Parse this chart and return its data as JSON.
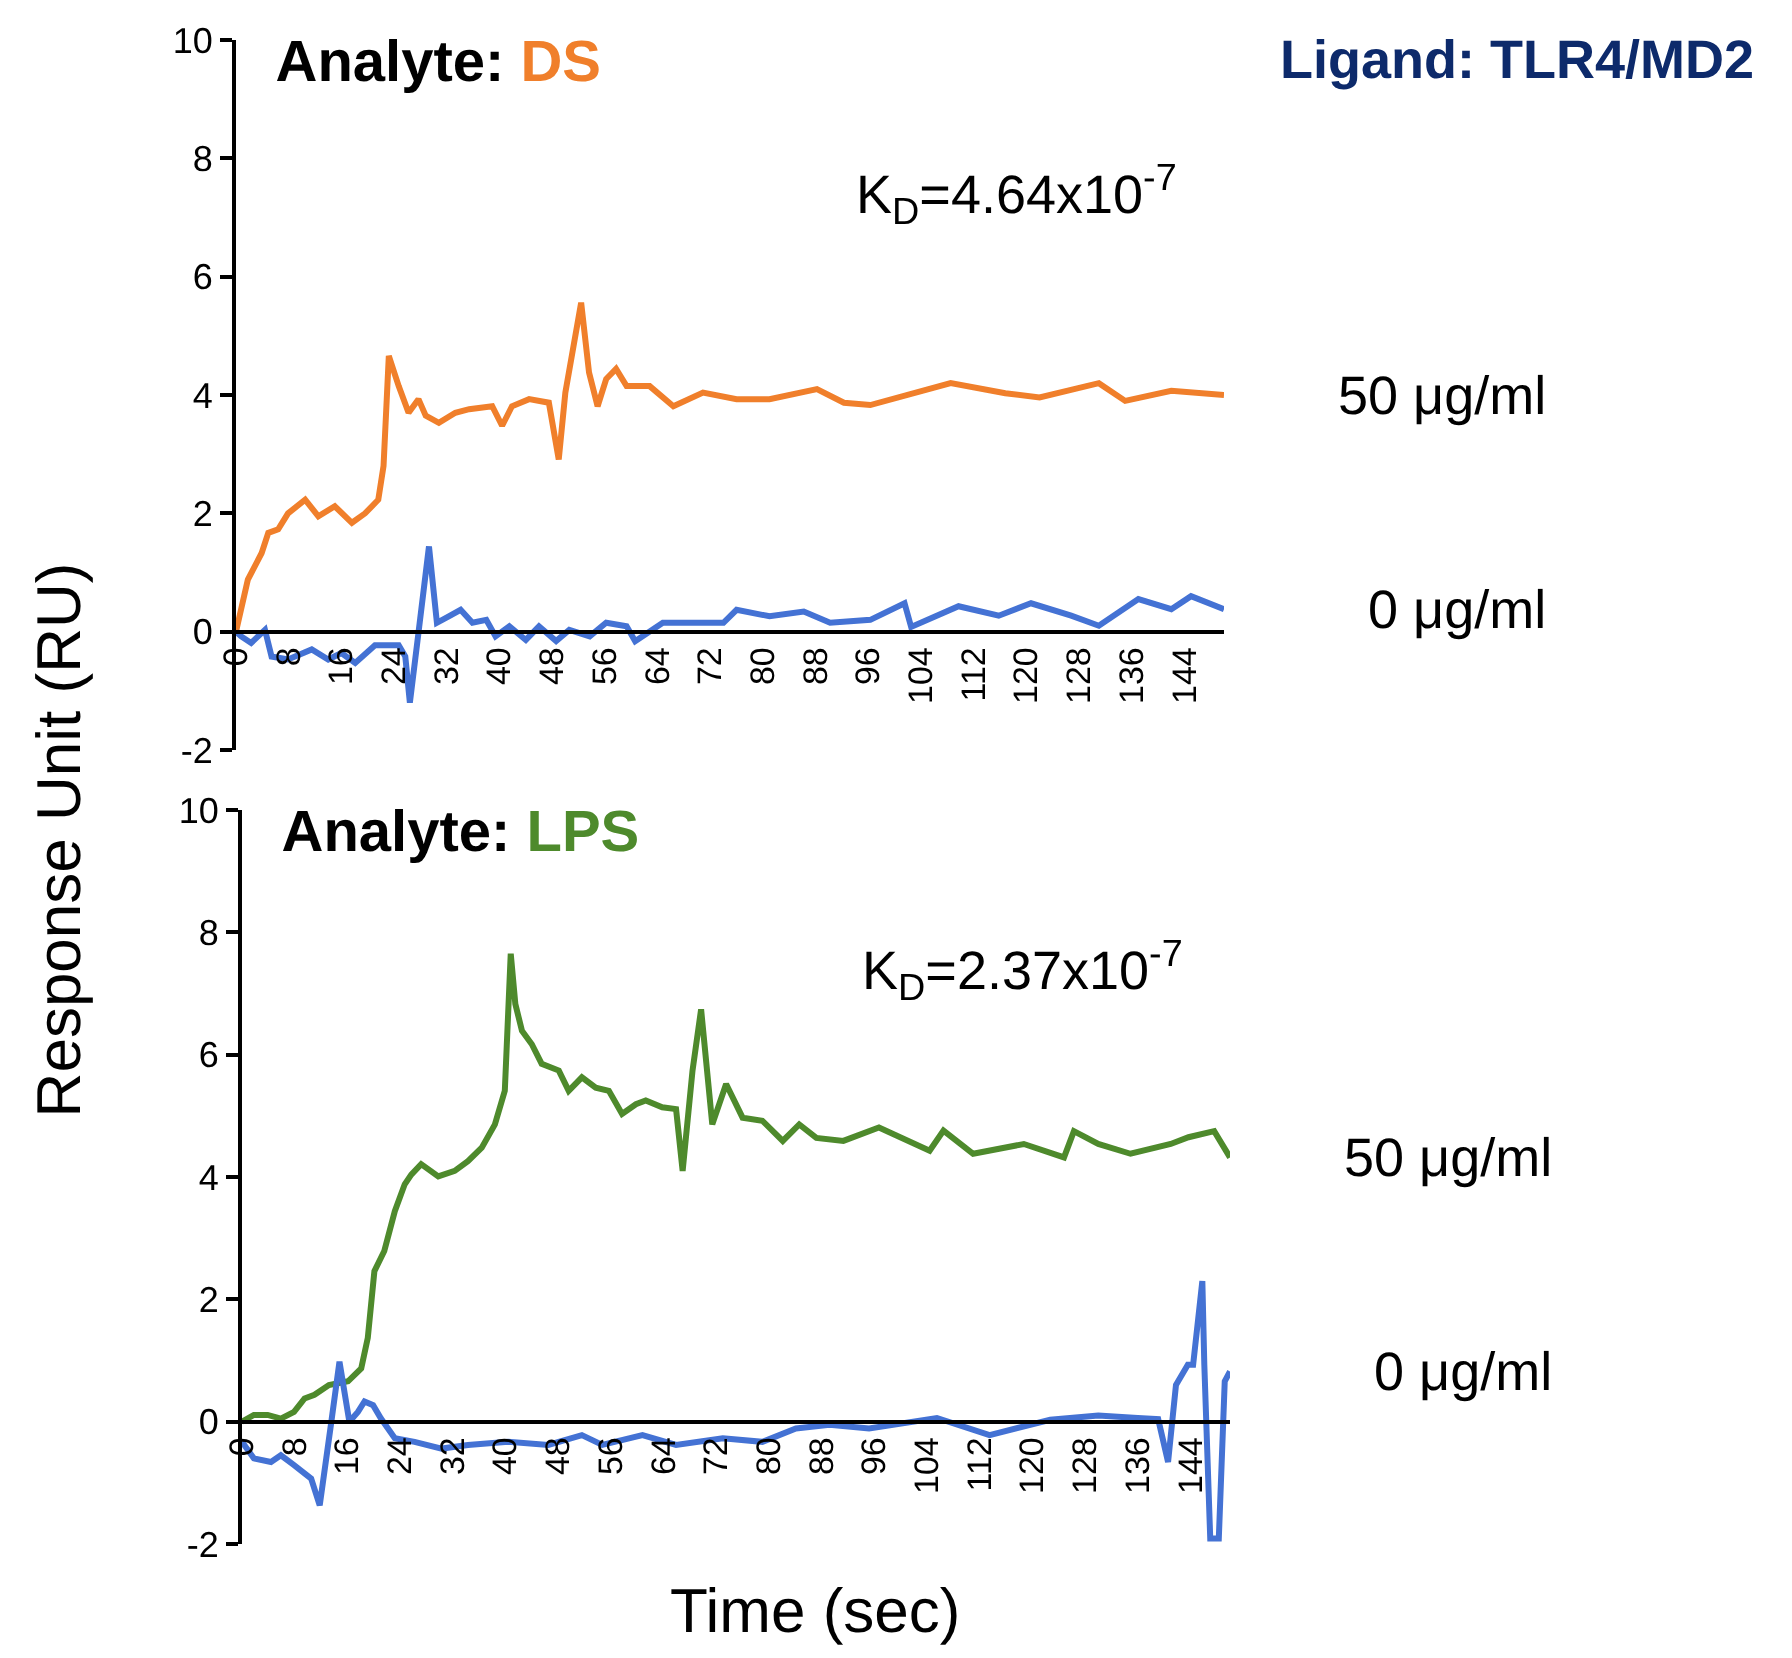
{
  "chart_data": [
    {
      "type": "line",
      "title": "Analyte: DS",
      "subtitle": "K$_{D}$=4.64x10$^{-7}$",
      "ylabel": "Response Unit (RU)",
      "annotations": [
        "Ligand: TLR4/MD2"
      ],
      "xlim": [
        0,
        150
      ],
      "ylim": [
        -2,
        10
      ],
      "xticks": [
        0,
        8,
        16,
        24,
        32,
        40,
        48,
        56,
        64,
        72,
        80,
        88,
        96,
        104,
        112,
        120,
        128,
        136,
        144
      ],
      "yticks": [
        -2,
        0,
        2,
        4,
        6,
        8,
        10
      ],
      "grid": false,
      "legend": false,
      "marker": "none",
      "line_style": "solid",
      "series": [
        {
          "name": "50 μg/ml",
          "color": "#f07f2b",
          "x": [
            0,
            1.8,
            3.9,
            4.9,
            6.4,
            7.9,
            10.5,
            12.5,
            15,
            17.6,
            19.6,
            21.6,
            22.4,
            23.2,
            24.7,
            26.2,
            27.7,
            28.8,
            30.8,
            33.3,
            35.4,
            38.9,
            40.4,
            41.9,
            44.5,
            47.5,
            49,
            50,
            52.4,
            53.6,
            54.9,
            56.2,
            57.7,
            59.3,
            62.8,
            66.4,
            70.9,
            76,
            81,
            88.2,
            92.3,
            96.3,
            108.5,
            116.8,
            122,
            131,
            135,
            142,
            150
          ],
          "values": [
            0,
            0.88,
            1.33,
            1.67,
            1.73,
            2.0,
            2.23,
            1.95,
            2.12,
            1.84,
            2.0,
            2.23,
            2.8,
            4.66,
            4.15,
            3.7,
            3.93,
            3.65,
            3.53,
            3.7,
            3.76,
            3.81,
            3.48,
            3.81,
            3.93,
            3.87,
            2.91,
            4.04,
            5.56,
            4.38,
            3.81,
            4.27,
            4.44,
            4.15,
            4.15,
            3.81,
            4.04,
            3.93,
            3.93,
            4.1,
            3.87,
            3.83,
            4.2,
            4.03,
            3.96,
            4.2,
            3.9,
            4.07,
            4.0
          ]
        },
        {
          "name": "0 μg/ml",
          "color": "#4472d4",
          "x": [
            0,
            0.8,
            2.3,
            4.4,
            5.4,
            7.9,
            11.5,
            14,
            16,
            18.1,
            21.1,
            24.7,
            25.7,
            26.4,
            27.7,
            29.3,
            30.5,
            32.3,
            34.1,
            35.9,
            38,
            39.4,
            41.5,
            44,
            46,
            48.6,
            50.6,
            53.7,
            56.2,
            59.3,
            60.6,
            64.8,
            74,
            76,
            81,
            86.2,
            90.2,
            96.3,
            101.5,
            102.5,
            109.7,
            115.8,
            120.7,
            126.8,
            131,
            137,
            142,
            145,
            150
          ],
          "values": [
            0,
            -0.08,
            -0.19,
            0.03,
            -0.42,
            -0.47,
            -0.3,
            -0.47,
            -0.36,
            -0.53,
            -0.23,
            -0.23,
            -0.42,
            -1.2,
            -0.02,
            1.44,
            0.15,
            0.26,
            0.37,
            0.15,
            0.2,
            -0.08,
            0.09,
            -0.14,
            0.09,
            -0.16,
            0.03,
            -0.08,
            0.15,
            0.09,
            -0.16,
            0.15,
            0.15,
            0.37,
            0.26,
            0.34,
            0.15,
            0.2,
            0.48,
            0.08,
            0.43,
            0.27,
            0.48,
            0.27,
            0.1,
            0.55,
            0.38,
            0.6,
            0.38
          ]
        }
      ]
    },
    {
      "type": "line",
      "title": "Analyte: LPS",
      "subtitle": "K$_{D}$=2.37x10$^{-7}$",
      "xlabel": "Time (sec)",
      "xlim": [
        0,
        150
      ],
      "ylim": [
        -2,
        10
      ],
      "xticks": [
        0,
        8,
        16,
        24,
        32,
        40,
        48,
        56,
        64,
        72,
        80,
        88,
        96,
        104,
        112,
        120,
        128,
        136,
        144
      ],
      "yticks": [
        -2,
        0,
        2,
        4,
        6,
        8,
        10
      ],
      "grid": false,
      "legend": false,
      "marker": "none",
      "line_style": "solid",
      "series": [
        {
          "name": "50 μg/ml",
          "color": "#4e8a2c",
          "x": [
            0,
            1.8,
            3.9,
            5.9,
            7.9,
            9.5,
            11,
            13.2,
            16.1,
            18.1,
            19.1,
            20.1,
            21.6,
            23.2,
            24.7,
            25.7,
            27.2,
            29.8,
            32.3,
            34.3,
            36.4,
            38.4,
            39.9,
            40.8,
            41.5,
            42.5,
            44,
            45.5,
            48.1,
            49.6,
            51.6,
            53.7,
            55.7,
            57.7,
            59.8,
            61.3,
            63.8,
            65.9,
            66.9,
            68.4,
            69.7,
            71.4,
            73.5,
            76,
            79,
            82.1,
            84.6,
            87.2,
            91.3,
            96.7,
            104.4,
            106.5,
            111,
            118.7,
            124.8,
            126.3,
            130,
            134.9,
            141,
            143.7,
            147.6,
            150
          ],
          "values": [
            0,
            0.11,
            0.11,
            0.05,
            0.16,
            0.38,
            0.44,
            0.6,
            0.66,
            0.87,
            1.37,
            2.46,
            2.79,
            3.44,
            3.88,
            4.04,
            4.21,
            4.01,
            4.1,
            4.26,
            4.48,
            4.86,
            5.41,
            7.65,
            6.83,
            6.39,
            6.17,
            5.85,
            5.74,
            5.41,
            5.63,
            5.46,
            5.41,
            5.03,
            5.19,
            5.25,
            5.14,
            5.11,
            4.1,
            5.74,
            6.74,
            4.86,
            5.52,
            4.97,
            4.92,
            4.59,
            4.86,
            4.64,
            4.59,
            4.81,
            4.43,
            4.76,
            4.38,
            4.54,
            4.32,
            4.75,
            4.54,
            4.38,
            4.54,
            4.65,
            4.75,
            4.32
          ]
        },
        {
          "name": "0 μg/ml",
          "color": "#4472d4",
          "x": [
            0,
            1.8,
            4.4,
            5.9,
            7.9,
            10.5,
            11.8,
            13.5,
            14.8,
            16.3,
            17.6,
            18.6,
            19.9,
            21.1,
            23.2,
            26.2,
            30.3,
            34.3,
            40.4,
            46.5,
            51.6,
            54.7,
            60.8,
            65.9,
            73,
            79,
            84.1,
            89.2,
            95.2,
            105.5,
            113.5,
            122.7,
            130,
            136,
            139.1,
            140.6,
            141.8,
            143.6,
            144.4,
            145.8,
            146.1,
            147,
            148.3,
            149.2,
            150
          ],
          "values": [
            -0.33,
            -0.6,
            -0.66,
            -0.55,
            -0.71,
            -0.93,
            -1.37,
            -0.05,
            0.98,
            0,
            0.16,
            0.33,
            0.27,
            0.05,
            -0.27,
            -0.33,
            -0.44,
            -0.38,
            -0.33,
            -0.38,
            -0.22,
            -0.38,
            -0.22,
            -0.38,
            -0.27,
            -0.33,
            -0.11,
            -0.05,
            -0.11,
            0.06,
            -0.22,
            0.03,
            0.1,
            0.06,
            0.04,
            -0.66,
            0.6,
            0.93,
            0.93,
            2.3,
            0.93,
            -1.91,
            -1.91,
            0.66,
            0.82
          ]
        }
      ]
    }
  ]
}
